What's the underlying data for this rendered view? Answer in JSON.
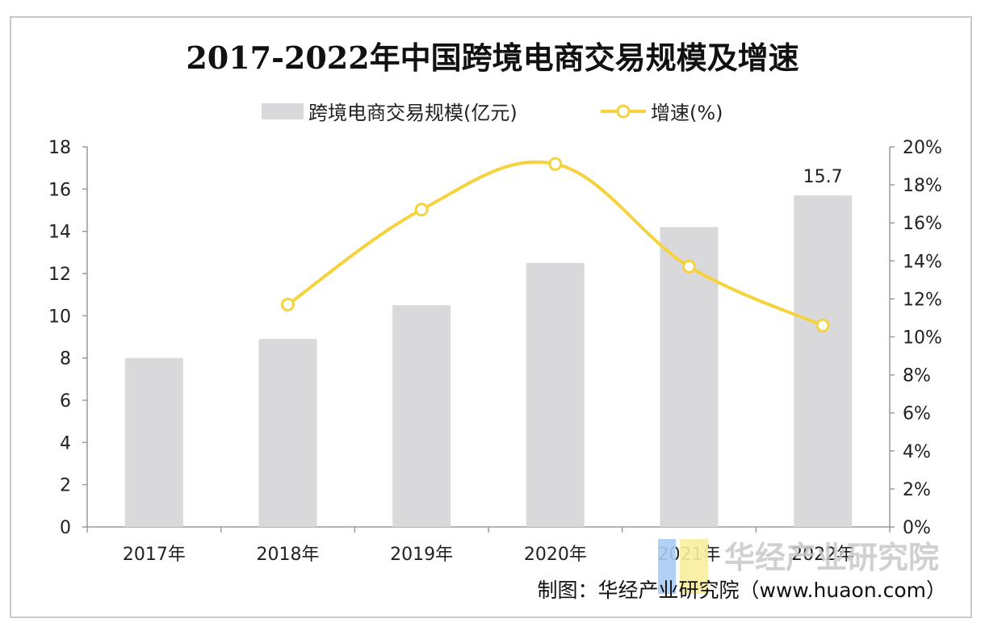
{
  "chart_data": {
    "type": "bar",
    "title": "2017-2022年中国跨境电商交易规模及增速",
    "categories": [
      "2017年",
      "2018年",
      "2019年",
      "2020年",
      "2021年",
      "2022年"
    ],
    "series": [
      {
        "name": "跨境电商交易规模(亿元)",
        "type": "bar",
        "axis": "left",
        "values": [
          8.0,
          8.9,
          10.5,
          12.5,
          14.2,
          15.7
        ]
      },
      {
        "name": "增速(%)",
        "type": "line",
        "axis": "right",
        "values": [
          null,
          11.7,
          16.7,
          19.1,
          13.7,
          10.6
        ]
      }
    ],
    "data_labels": [
      {
        "series": 0,
        "index": 5,
        "text": "15.7"
      }
    ],
    "left_axis": {
      "ylim": [
        0,
        18
      ],
      "ticks": [
        "0",
        "2",
        "4",
        "6",
        "8",
        "10",
        "12",
        "14",
        "16",
        "18"
      ]
    },
    "right_axis": {
      "ylim": [
        0,
        20
      ],
      "ticks": [
        "0%",
        "2%",
        "4%",
        "6%",
        "8%",
        "10%",
        "12%",
        "14%",
        "16%",
        "18%",
        "20%"
      ]
    },
    "grid": false,
    "legend_position": "top-center",
    "colors": {
      "bar": "#d9d9db",
      "line": "#f6d23c",
      "marker_fill": "#ffffff",
      "axis": "#9a9a9a"
    }
  },
  "source": "制图：华经产业研究院（www.huaon.com）",
  "watermark": "华经产业研究院",
  "watermark_colors": {
    "blue": "#a9cbf3",
    "yellow": "#f7ee9d"
  }
}
